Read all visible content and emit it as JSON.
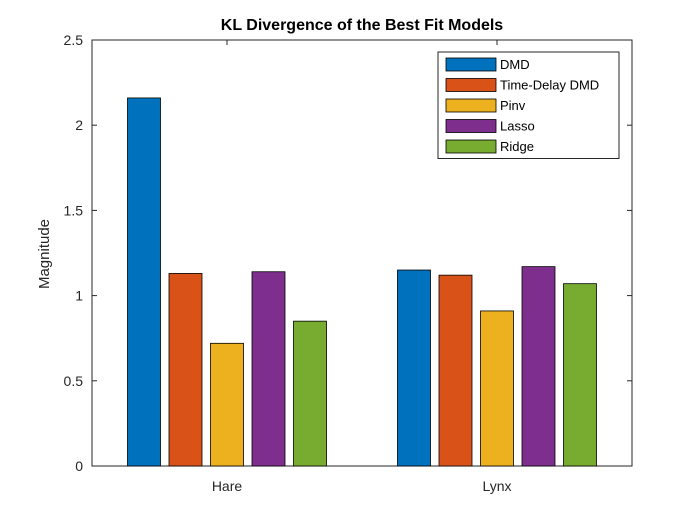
{
  "chart_data": {
    "type": "bar",
    "title": "KL Divergence of the Best Fit Models",
    "xlabel": "",
    "ylabel": "Magnitude",
    "categories": [
      "Hare",
      "Lynx"
    ],
    "ylim": [
      0,
      2.5
    ],
    "yticks": [
      "0",
      "0.5",
      "1",
      "1.5",
      "2",
      "2.5"
    ],
    "legend_position": "top-right",
    "grid": false,
    "series": [
      {
        "name": "DMD",
        "color": "#0072BD",
        "values": [
          2.16,
          1.15
        ]
      },
      {
        "name": "Time-Delay DMD",
        "color": "#D95319",
        "values": [
          1.13,
          1.12
        ]
      },
      {
        "name": "Pinv",
        "color": "#EDB120",
        "values": [
          0.72,
          0.91
        ]
      },
      {
        "name": "Lasso",
        "color": "#7E2F8E",
        "values": [
          1.14,
          1.17
        ]
      },
      {
        "name": "Ridge",
        "color": "#77AC30",
        "values": [
          0.85,
          1.07
        ]
      }
    ]
  }
}
